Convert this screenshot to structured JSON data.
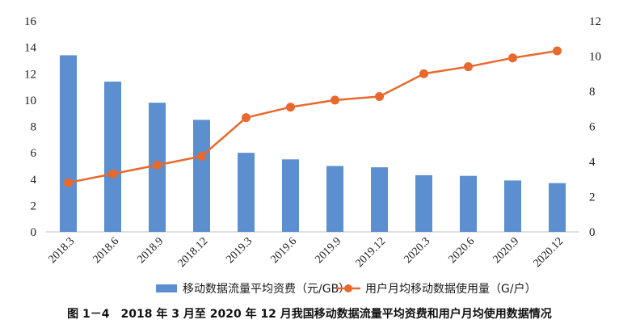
{
  "chart_data": {
    "type": "bar",
    "categories": [
      "2018.3",
      "2018.6",
      "2018.9",
      "2018.12",
      "2019.3",
      "2019.6",
      "2019.9",
      "2019.12",
      "2020.3",
      "2020.6",
      "2020.9",
      "2020.12"
    ],
    "series": [
      {
        "name": "移动数据流量平均资费（元/GB）",
        "type": "bar",
        "axis": "left",
        "color": "#5b8fd0",
        "values": [
          13.4,
          11.4,
          9.8,
          8.5,
          6.0,
          5.5,
          5.0,
          4.9,
          4.3,
          4.25,
          3.9,
          3.7
        ]
      },
      {
        "name": "用户月均移动数据使用量（G/户）",
        "type": "line",
        "axis": "right",
        "color": "#e8692d",
        "values": [
          2.8,
          3.3,
          3.8,
          4.3,
          6.5,
          7.1,
          7.5,
          7.7,
          9.0,
          9.4,
          9.9,
          10.3
        ]
      }
    ],
    "y_left": {
      "lim": [
        0,
        16
      ],
      "ticks": [
        "0",
        "2",
        "4",
        "6",
        "8",
        "10",
        "12",
        "14",
        "16"
      ]
    },
    "y_right": {
      "lim": [
        0,
        12
      ],
      "ticks": [
        "0",
        "2",
        "4",
        "6",
        "8",
        "10",
        "12"
      ]
    },
    "grid": false,
    "legend_position": "bottom",
    "caption": "图 1－4　2018 年 3 月至 2020 年 12 月我国移动数据流量平均资费和用户月均使用数据情况"
  }
}
